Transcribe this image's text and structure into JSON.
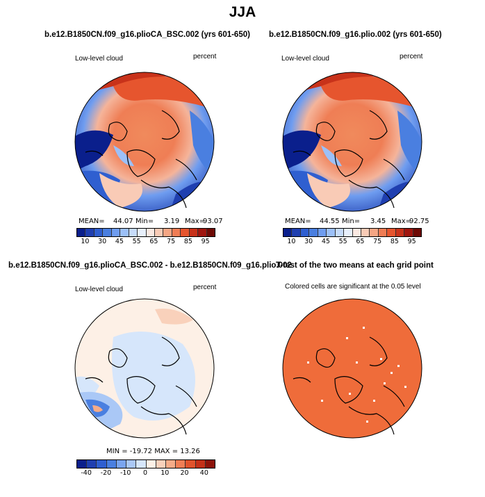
{
  "title": "JJA",
  "panels": {
    "top_left": {
      "title": "b.e12.B1850CN.f09_g16.plioCA_BSC.002 (yrs 601-650)",
      "left_label": "Low-level cloud",
      "right_label": "percent",
      "stats": {
        "mean_label": "MEAN=",
        "mean": "44.07",
        "min_label": "Min=",
        "min": "3.19",
        "max_label": "Max=",
        "max": "93.07"
      }
    },
    "top_right": {
      "title": "b.e12.B1850CN.f09_g16.plio.002 (yrs 601-650)",
      "left_label": "Low-level cloud",
      "right_label": "percent",
      "stats": {
        "mean_label": "MEAN=",
        "mean": "44.55",
        "min_label": "Min=",
        "min": "3.45",
        "max_label": "Max=",
        "max": "92.75"
      }
    },
    "bottom_left": {
      "title": "b.e12.B1850CN.f09_g16.plioCA_BSC.002 - b.e12.B1850CN.f09_g16.plio.002",
      "left_label": "Low-level cloud",
      "right_label": "percent",
      "stats_text": "MIN = -19.72  MAX = 13.26"
    },
    "bottom_right": {
      "title": "T-test of the two means at each grid point",
      "subtitle": "Colored cells are significant at the 0.05 level"
    }
  },
  "colorbars": {
    "absolute": {
      "labels": [
        "10",
        "30",
        "45",
        "55",
        "65",
        "75",
        "85",
        "95"
      ],
      "colors": [
        "#0a1f8c",
        "#1f3fb0",
        "#2f5fd0",
        "#4a7fe0",
        "#6f9df0",
        "#9cc0f8",
        "#c7dcfb",
        "#e8f0fc",
        "#fbe9e2",
        "#f9cbb6",
        "#f5a684",
        "#f07d55",
        "#e6552e",
        "#c8321a",
        "#a0160f",
        "#6e0a05"
      ]
    },
    "difference": {
      "labels": [
        "-40",
        "-20",
        "-10",
        "0",
        "10",
        "20",
        "40"
      ],
      "colors": [
        "#0a1f8c",
        "#1f3fb0",
        "#2f5fd0",
        "#4a7fe0",
        "#7aa5ef",
        "#aac8f6",
        "#d6e6fb",
        "#fdf0e6",
        "#f9d1bb",
        "#f5ab88",
        "#ef7e55",
        "#e0532c",
        "#c33018",
        "#8c1209"
      ]
    }
  },
  "chart_data": [
    {
      "type": "heatmap",
      "title": "b.e12.B1850CN.f09_g16.plioCA_BSC.002 (yrs 601-650)",
      "variable": "Low-level cloud",
      "units": "percent",
      "mean": 44.07,
      "min": 3.19,
      "max": 93.07,
      "colorbar_ticks": [
        10,
        30,
        45,
        55,
        65,
        75,
        85,
        95
      ]
    },
    {
      "type": "heatmap",
      "title": "b.e12.B1850CN.f09_g16.plio.002 (yrs 601-650)",
      "variable": "Low-level cloud",
      "units": "percent",
      "mean": 44.55,
      "min": 3.45,
      "max": 92.75,
      "colorbar_ticks": [
        10,
        30,
        45,
        55,
        65,
        75,
        85,
        95
      ]
    },
    {
      "type": "heatmap",
      "title": "b.e12.B1850CN.f09_g16.plioCA_BSC.002 - b.e12.B1850CN.f09_g16.plio.002",
      "variable": "Low-level cloud",
      "units": "percent",
      "min": -19.72,
      "max": 13.26,
      "colorbar_ticks": [
        -40,
        -20,
        -10,
        0,
        10,
        20,
        40
      ]
    },
    {
      "type": "heatmap",
      "title": "T-test of the two means at each grid point",
      "subtitle": "Colored cells are significant at the 0.05 level",
      "significance_level": 0.05
    }
  ]
}
